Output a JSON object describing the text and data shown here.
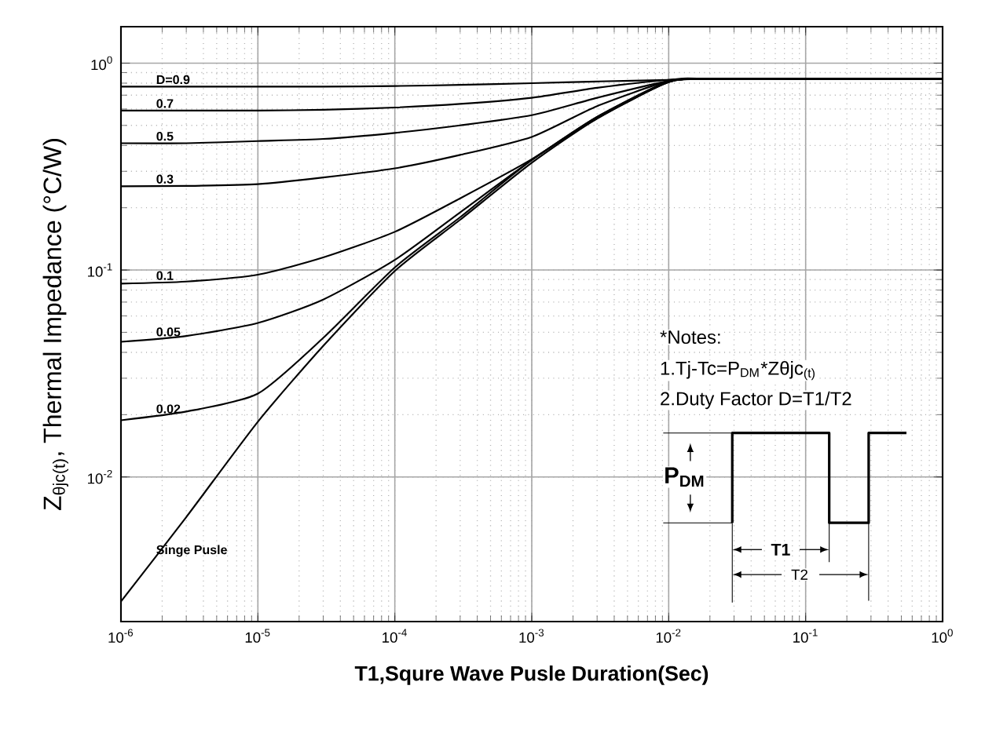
{
  "chart_data": {
    "type": "line",
    "xlabel": "T1,Squre Wave Pusle Duration(Sec)",
    "ylabel": "Z$_{θjc(t)}$, Thermal Impedance (°C/W)",
    "log": "xy",
    "grid": true,
    "marker": "none",
    "line_style": "solid",
    "xlim": [
      1e-06,
      1
    ],
    "ylim": [
      0.002,
      1.5
    ],
    "xticks": [
      {
        "value": 1e-06,
        "label": "10$^{-6}$"
      },
      {
        "value": 1e-05,
        "label": "10$^{-5}$"
      },
      {
        "value": 0.0001,
        "label": "10$^{-4}$"
      },
      {
        "value": 0.001,
        "label": "10$^{-3}$"
      },
      {
        "value": 0.01,
        "label": "10$^{-2}$"
      },
      {
        "value": 0.1,
        "label": "10$^{-1}$"
      },
      {
        "value": 1,
        "label": "10$^{0}$"
      }
    ],
    "yticks": [
      {
        "value": 0.01,
        "label": "10$^{-2}$"
      },
      {
        "value": 0.1,
        "label": "10$^{-1}$"
      },
      {
        "value": 1,
        "label": "10$^{0}$"
      }
    ],
    "x": [
      1e-06,
      3e-06,
      1e-05,
      3e-05,
      0.0001,
      0.0003,
      0.001,
      0.003,
      0.01,
      0.02,
      0.1,
      1
    ],
    "series": [
      {
        "name": "D=0.9",
        "color": "#000000",
        "values": [
          0.77,
          0.77,
          0.77,
          0.77,
          0.775,
          0.785,
          0.8,
          0.815,
          0.83,
          0.84,
          0.84,
          0.84
        ]
      },
      {
        "name": "0.7",
        "color": "#000000",
        "values": [
          0.59,
          0.59,
          0.59,
          0.595,
          0.61,
          0.635,
          0.68,
          0.76,
          0.83,
          0.84,
          0.84,
          0.84
        ]
      },
      {
        "name": "0.5",
        "color": "#000000",
        "values": [
          0.41,
          0.41,
          0.42,
          0.43,
          0.46,
          0.5,
          0.56,
          0.68,
          0.82,
          0.84,
          0.84,
          0.84
        ]
      },
      {
        "name": "0.3",
        "color": "#000000",
        "values": [
          0.254,
          0.255,
          0.26,
          0.28,
          0.31,
          0.36,
          0.44,
          0.62,
          0.82,
          0.84,
          0.84,
          0.84
        ]
      },
      {
        "name": "0.1",
        "color": "#000000",
        "values": [
          0.086,
          0.088,
          0.095,
          0.115,
          0.153,
          0.222,
          0.343,
          0.55,
          0.82,
          0.84,
          0.84,
          0.84
        ]
      },
      {
        "name": "0.05",
        "color": "#000000",
        "values": [
          0.045,
          0.048,
          0.0555,
          0.072,
          0.112,
          0.19,
          0.34,
          0.55,
          0.81,
          0.84,
          0.84,
          0.84
        ]
      },
      {
        "name": "0.02",
        "color": "#000000",
        "values": [
          0.0188,
          0.0207,
          0.0253,
          0.047,
          0.103,
          0.18,
          0.34,
          0.54,
          0.81,
          0.84,
          0.84,
          0.84
        ]
      },
      {
        "name": "Singe Pusle",
        "color": "#000000",
        "values": [
          0.0025,
          0.0064,
          0.0185,
          0.043,
          0.099,
          0.175,
          0.33,
          0.54,
          0.81,
          0.84,
          0.84,
          0.84
        ]
      }
    ],
    "annotations": [
      "*Notes:",
      "1.Tj-Tc=P$_{DM}$*Zθjc$_{(t)}$",
      "2.Duty Factor D=T1/T2",
      "P$_{DM}$",
      "T1",
      "T2"
    ]
  }
}
